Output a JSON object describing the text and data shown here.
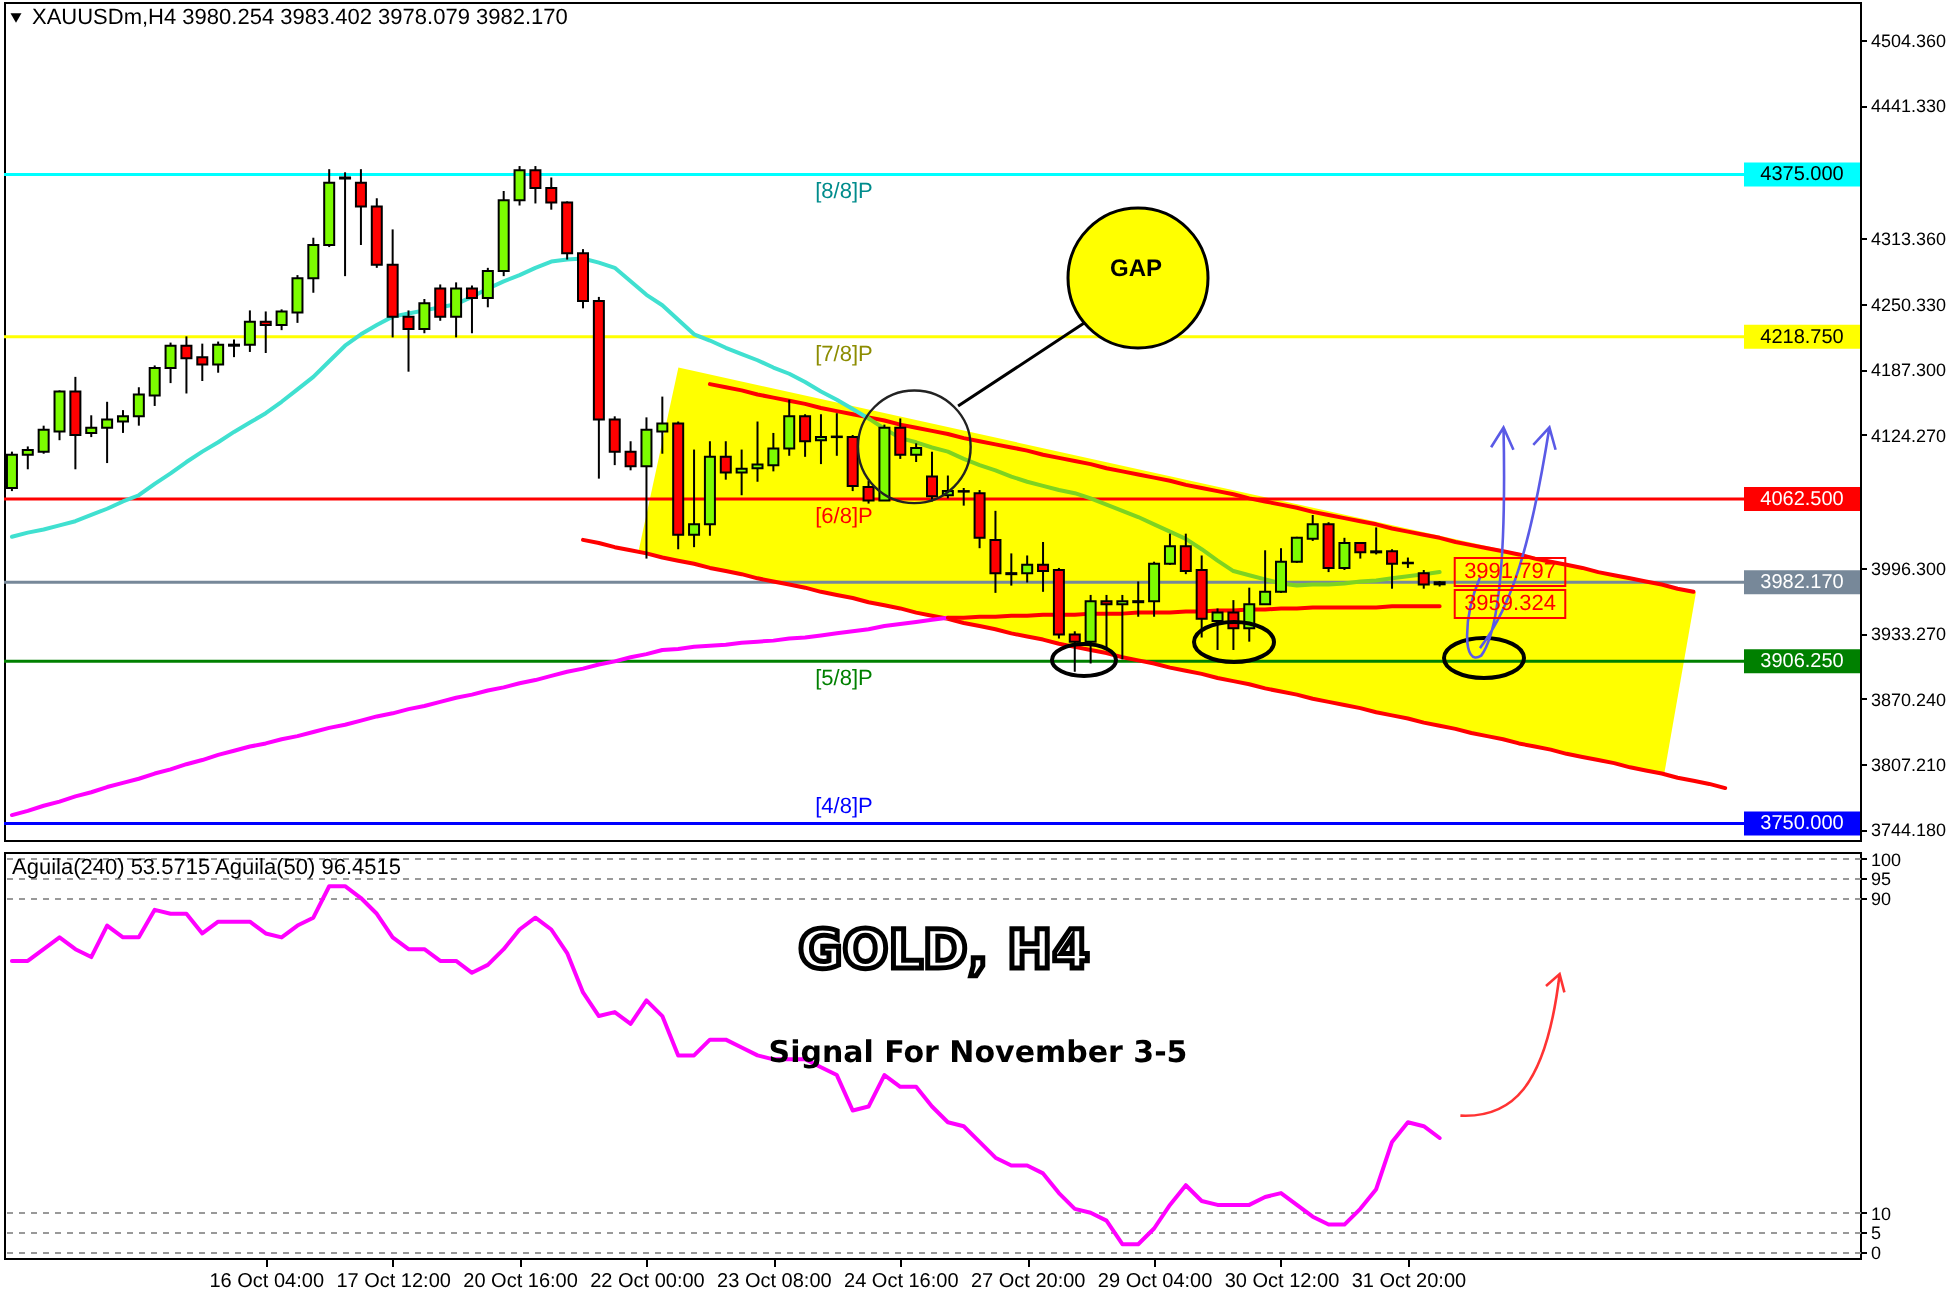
{
  "chart_data": [
    {
      "type": "candlestick",
      "title": "XAUUSDm,H4  3980.254 3983.402 3978.079 3982.170",
      "tick_labels": "y",
      "categories": [
        null,
        null,
        null,
        null,
        null,
        null,
        null,
        null,
        null,
        null,
        null,
        null,
        null,
        null,
        null,
        null,
        null,
        null,
        null,
        null,
        null,
        null,
        null,
        null,
        null,
        null,
        null,
        null,
        null,
        null,
        null,
        null,
        null,
        null,
        null,
        null,
        null,
        null,
        null,
        null,
        null,
        null,
        null,
        null,
        null,
        null,
        null,
        null,
        null,
        null,
        null,
        null,
        null,
        null,
        null,
        null,
        null,
        null,
        null,
        null,
        null,
        null,
        null,
        null,
        null,
        null,
        null,
        null,
        null,
        null,
        null,
        null,
        null,
        null,
        null,
        null,
        null,
        null,
        null,
        null,
        null,
        null,
        null,
        null,
        null,
        null,
        null,
        null,
        null,
        null,
        null,
        null,
        null,
        null,
        null,
        null,
        null,
        null,
        null,
        null,
        null,
        null,
        null,
        null,
        null,
        null,
        null,
        null,
        null,
        null,
        null,
        null,
        null,
        null,
        null,
        null,
        null
      ],
      "ohlc": [
        [
          4073,
          4108,
          4070,
          4105
        ],
        [
          4105,
          4113,
          4091,
          4109.5
        ],
        [
          4108,
          4133,
          4106,
          4129
        ],
        [
          4127.5,
          4167,
          4119,
          4166
        ],
        [
          4166,
          4180,
          4091,
          4124
        ],
        [
          4126,
          4143,
          4122,
          4131
        ],
        [
          4131,
          4156,
          4097,
          4139
        ],
        [
          4137,
          4148,
          4126,
          4142
        ],
        [
          4142,
          4170,
          4133,
          4163
        ],
        [
          4162,
          4191,
          4152,
          4188.5
        ],
        [
          4188.5,
          4213,
          4174,
          4210
        ],
        [
          4210,
          4219,
          4164,
          4198
        ],
        [
          4199,
          4212,
          4176,
          4192
        ],
        [
          4192,
          4214,
          4184,
          4211
        ],
        [
          4210,
          4216,
          4199,
          4211
        ],
        [
          4211,
          4244,
          4204,
          4233
        ],
        [
          4233,
          4243,
          4203,
          4230
        ],
        [
          4230,
          4245,
          4225,
          4243
        ],
        [
          4242,
          4278,
          4232,
          4275
        ],
        [
          4275,
          4314,
          4261,
          4307
        ],
        [
          4307,
          4380,
          4305,
          4367
        ],
        [
          4371,
          4377,
          4277,
          4372
        ],
        [
          4367,
          4380,
          4307,
          4344
        ],
        [
          4344,
          4352,
          4285,
          4288
        ],
        [
          4288,
          4322,
          4218,
          4238
        ],
        [
          4238,
          4244,
          4185,
          4226
        ],
        [
          4226,
          4255,
          4222,
          4251
        ],
        [
          4265,
          4269,
          4234,
          4238
        ],
        [
          4238,
          4271,
          4218,
          4265
        ],
        [
          4265,
          4268,
          4222,
          4256
        ],
        [
          4256,
          4285,
          4247,
          4282
        ],
        [
          4282,
          4359,
          4277,
          4350
        ],
        [
          4350,
          4383,
          4345,
          4379
        ],
        [
          4379,
          4383,
          4347,
          4362
        ],
        [
          4362,
          4372,
          4341,
          4348
        ],
        [
          4348,
          4349,
          4293,
          4299
        ],
        [
          4299,
          4303,
          4246,
          4253
        ],
        [
          4253,
          4257,
          4082,
          4139
        ],
        [
          4139,
          4142,
          4095,
          4108
        ],
        [
          4108,
          4118,
          4090,
          4094
        ],
        [
          4094,
          4141,
          4005,
          4129
        ],
        [
          4127.5,
          4161,
          4106,
          4135
        ],
        [
          4135,
          4137,
          4014,
          4028
        ],
        [
          4028,
          4110,
          4016,
          4038
        ],
        [
          4038,
          4118,
          4027,
          4103
        ],
        [
          4103,
          4118,
          4081,
          4088
        ],
        [
          4088,
          4110,
          4066,
          4091.5
        ],
        [
          4092,
          4137,
          4079,
          4095.5
        ],
        [
          4095,
          4126,
          4089,
          4111
        ],
        [
          4111,
          4158,
          4104,
          4142
        ],
        [
          4142,
          4144,
          4103,
          4118
        ],
        [
          4119,
          4144,
          4096,
          4122
        ],
        [
          4122,
          4145,
          4104,
          4122.5
        ],
        [
          4122,
          4124,
          4070,
          4075
        ],
        [
          4074,
          4080,
          4058,
          4061
        ],
        [
          4061,
          4134,
          4061,
          4131
        ],
        [
          4131,
          4140,
          4101,
          4105
        ],
        [
          4105,
          4116,
          4098,
          4111.5
        ],
        [
          4084,
          4108,
          4060,
          4065
        ],
        [
          4066,
          4085,
          4063,
          4070
        ],
        [
          4070,
          4073,
          4056,
          4069.5
        ],
        [
          4068,
          4071,
          4015,
          4025
        ],
        [
          4023,
          4051,
          3972,
          3991
        ],
        [
          3991,
          4010,
          3979,
          3990
        ],
        [
          3991,
          4008,
          3982,
          3999
        ],
        [
          3999,
          4021,
          3973,
          3993
        ],
        [
          3994,
          3996,
          3928,
          3932
        ],
        [
          3932,
          3935,
          3896,
          3925
        ],
        [
          3925,
          3970,
          3904,
          3964
        ],
        [
          3964,
          3970,
          3917,
          3961
        ],
        [
          3961,
          3970,
          3908,
          3964
        ],
        [
          3963,
          3983,
          3949,
          3964
        ],
        [
          3964,
          4002,
          3949,
          4000
        ],
        [
          4000,
          4029,
          3999,
          4017
        ],
        [
          4017,
          4029,
          3990,
          3993
        ],
        [
          3994,
          4008,
          3929,
          3947
        ],
        [
          3945,
          3957,
          3917,
          3953
        ],
        [
          3953,
          3965,
          3917,
          3938
        ],
        [
          3938,
          3977,
          3925,
          3961
        ],
        [
          3961,
          4013,
          3961,
          3973
        ],
        [
          3973,
          4015,
          3972,
          4002
        ],
        [
          4002,
          4026,
          4001,
          4025
        ],
        [
          4024,
          4047,
          4022,
          4038
        ],
        [
          4038,
          4040,
          3992,
          3996
        ],
        [
          3996,
          4025,
          3994,
          4020
        ],
        [
          4020,
          4021,
          4005,
          4011
        ],
        [
          4012,
          4035,
          4009,
          4011
        ],
        [
          4012,
          4014,
          3976,
          4000
        ],
        [
          4001,
          4006,
          3996,
          4000.5
        ],
        [
          3991,
          3994,
          3976,
          3980
        ],
        [
          3980.254,
          3983.402,
          3978.079,
          3982.17
        ],
        null,
        null,
        null,
        null,
        null,
        null,
        null,
        null,
        null,
        null,
        null,
        null,
        null,
        null,
        null,
        null,
        null,
        null,
        null,
        null,
        null,
        null,
        null,
        null,
        null,
        null
      ],
      "colors": [
        "#7cfc00",
        "#7cfc00",
        "#7cfc00",
        "#7cfc00",
        "#ff0000",
        "#7cfc00",
        "#7cfc00",
        "#7cfc00",
        "#7cfc00",
        "#7cfc00",
        "#7cfc00",
        "#ff0000",
        "#ff0000",
        "#7cfc00",
        "#7cfc00",
        "#7cfc00",
        "#ff0000",
        "#7cfc00",
        "#7cfc00",
        "#7cfc00",
        "#7cfc00",
        "#7cfc00",
        "#ff0000",
        "#ff0000",
        "#ff0000",
        "#ff0000",
        "#7cfc00",
        "#ff0000",
        "#7cfc00",
        "#ff0000",
        "#7cfc00",
        "#7cfc00",
        "#7cfc00",
        "#ff0000",
        "#ff0000",
        "#ff0000",
        "#ff0000",
        "#ff0000",
        "#ff0000",
        "#ff0000",
        "#7cfc00",
        "#7cfc00",
        "#ff0000",
        "#7cfc00",
        "#7cfc00",
        "#ff0000",
        "#7cfc00",
        "#7cfc00",
        "#7cfc00",
        "#7cfc00",
        "#ff0000",
        "#7cfc00",
        "#7cfc00",
        "#ff0000",
        "#ff0000",
        "#7cfc00",
        "#ff0000",
        "#7cfc00",
        "#ff0000",
        "#7cfc00",
        "#ff0000",
        "#ff0000",
        "#ff0000",
        "#ff0000",
        "#7cfc00",
        "#ff0000",
        "#ff0000",
        "#ff0000",
        "#7cfc00",
        "#ff0000",
        "#7cfc00",
        "#7cfc00",
        "#7cfc00",
        "#7cfc00",
        "#ff0000",
        "#ff0000",
        "#7cfc00",
        "#ff0000",
        "#7cfc00",
        "#7cfc00",
        "#7cfc00",
        "#7cfc00",
        "#7cfc00",
        "#ff0000",
        "#7cfc00",
        "#ff0000",
        "#ff0000",
        "#ff0000",
        "#ff0000",
        "#ff0000",
        "#7cfc00",
        null,
        null,
        null,
        null,
        null,
        null,
        null,
        null,
        null,
        null,
        null,
        null,
        null,
        null,
        null,
        null,
        null,
        null,
        null,
        null,
        null,
        null,
        null,
        null,
        null,
        null
      ],
      "series": [
        {
          "type": "line",
          "color": "#ff0000",
          "values": [
            null,
            null,
            null,
            null,
            null,
            null,
            null,
            null,
            null,
            null,
            null,
            null,
            null,
            null,
            null,
            null,
            null,
            null,
            null,
            null,
            null,
            null,
            null,
            null,
            null,
            null,
            null,
            null,
            null,
            null,
            null,
            null,
            null,
            null,
            null,
            null,
            null,
            null,
            null,
            null,
            null,
            null,
            null,
            null,
            4173,
            4170,
            4167,
            4163,
            4160,
            4157,
            4154,
            4150,
            4147,
            4144,
            4141,
            4138,
            4134,
            4131,
            4128,
            4125,
            4121,
            4118,
            4115,
            4112,
            4109,
            4105,
            4102,
            4099,
            4096,
            4092,
            4089,
            4086,
            4083,
            4080,
            4076,
            4073,
            4070,
            4067,
            4063,
            4060,
            4057,
            4054,
            4050,
            4047,
            4044,
            4041,
            4038,
            4034,
            4031,
            4028,
            4025,
            4021,
            4018,
            4015,
            4012,
            4009,
            4005,
            4002,
            3999,
            3996,
            3992,
            3989,
            3986,
            3983,
            3980,
            3976,
            3973,
            null,
            null,
            null,
            null,
            null,
            null,
            null,
            null,
            null,
            null
          ]
        },
        {
          "type": "line",
          "color": "#ff0000",
          "values": [
            null,
            null,
            null,
            null,
            null,
            null,
            null,
            null,
            null,
            null,
            null,
            null,
            null,
            null,
            null,
            null,
            null,
            null,
            null,
            null,
            null,
            null,
            null,
            null,
            null,
            null,
            null,
            null,
            null,
            null,
            null,
            null,
            null,
            null,
            null,
            null,
            4023,
            4020,
            4016,
            4013,
            4010,
            4006,
            4003,
            4000,
            3996,
            3993,
            3990,
            3986,
            3983,
            3980,
            3977,
            3973,
            3970,
            3967,
            3963,
            3960,
            3957,
            3953,
            3950,
            3947,
            3943,
            3940,
            3937,
            3933,
            3930,
            3927,
            3923,
            3920,
            3917,
            3914,
            3910,
            3907,
            3904,
            3900,
            3897,
            3894,
            3890,
            3887,
            3884,
            3880,
            3877,
            3874,
            3870,
            3867,
            3864,
            3861,
            3857,
            3854,
            3851,
            3847,
            3844,
            3841,
            3837,
            3834,
            3831,
            3827,
            3824,
            3821,
            3817,
            3814,
            3811,
            3808,
            3804,
            3801,
            3798,
            3794,
            3791,
            3788,
            3784,
            null,
            null,
            null,
            null,
            null,
            null,
            null,
            null
          ]
        },
        {
          "type": "line",
          "color": "#ff00ff",
          "values": [
            3758,
            3762,
            3767,
            3771,
            3776,
            3780,
            3785,
            3789,
            3793,
            3798,
            3802,
            3807,
            3811,
            3816,
            3820,
            3824,
            3827,
            3831,
            3834,
            3838,
            3842,
            3845,
            3849,
            3853,
            3856,
            3860,
            3863,
            3867,
            3871,
            3874,
            3878,
            3881,
            3885,
            3888,
            3892,
            3896,
            3899,
            3903,
            3906,
            3910,
            3913,
            3917,
            3918,
            3920,
            3921,
            3922,
            3924,
            3925,
            3926,
            3928,
            3929,
            3931,
            3933,
            3935,
            3937,
            3940,
            3942,
            3944,
            3946,
            3948,
            null,
            null,
            null,
            null,
            null,
            null,
            null,
            null,
            null,
            null,
            null,
            null,
            null,
            null,
            null,
            null,
            null,
            null,
            null,
            null,
            null,
            null,
            null,
            null,
            null,
            null,
            null,
            null,
            null,
            null,
            null,
            null,
            null,
            null,
            null,
            null,
            null,
            null,
            null,
            null,
            null,
            null,
            null,
            null,
            null,
            null,
            null,
            null,
            null,
            null,
            null,
            null,
            null,
            null,
            null,
            null,
            null
          ]
        },
        {
          "type": "line",
          "color": "#ff0000",
          "values": [
            null,
            null,
            null,
            null,
            null,
            null,
            null,
            null,
            null,
            null,
            null,
            null,
            null,
            null,
            null,
            null,
            null,
            null,
            null,
            null,
            null,
            null,
            null,
            null,
            null,
            null,
            null,
            null,
            null,
            null,
            null,
            null,
            null,
            null,
            null,
            null,
            null,
            null,
            null,
            null,
            null,
            null,
            null,
            null,
            null,
            null,
            null,
            null,
            null,
            null,
            null,
            null,
            null,
            null,
            null,
            null,
            null,
            null,
            null,
            3948,
            3948,
            3949,
            3949,
            3950,
            3950,
            3951,
            3951,
            3951,
            3952,
            3952,
            3952,
            3953,
            3953,
            3953,
            3954,
            3954,
            3955,
            3955,
            3956,
            3956,
            3957,
            3957,
            3958,
            3958,
            3958,
            3958,
            3958,
            3959,
            3959,
            3959,
            3959,
            null,
            null,
            null,
            null,
            null,
            null,
            null,
            null,
            null,
            null,
            null,
            null,
            null,
            null,
            null,
            null,
            null,
            null,
            null,
            null,
            null,
            null,
            null,
            null,
            null,
            null
          ]
        },
        {
          "type": "line",
          "color": "#40e0d0",
          "values": [
            4026,
            4030,
            4033,
            4037,
            4041,
            4047,
            4053,
            4060,
            4066,
            4077,
            4087,
            4098,
            4108,
            4117,
            4127,
            4136,
            4145,
            4156,
            4168,
            4180,
            4195,
            4210,
            4221,
            4230,
            4238,
            4241,
            4244,
            4247,
            4250,
            4257,
            4265,
            4272,
            4278,
            4285,
            4291,
            4293,
            4294,
            4290,
            4285,
            4272,
            4259,
            4249,
            4235,
            4221,
            4215,
            4208,
            4202,
            4196,
            4189,
            4183,
            4175,
            4166,
            4158,
            4149,
            4140,
            null,
            null,
            null,
            null,
            null,
            null,
            null,
            null,
            null,
            null,
            null,
            null,
            null,
            null,
            null,
            null,
            null,
            null,
            null,
            null,
            null,
            null,
            null,
            null,
            null,
            null,
            null,
            null,
            null,
            null,
            null,
            null,
            null,
            null,
            null,
            null,
            null,
            null,
            null,
            null,
            null,
            null,
            null,
            null,
            null,
            null,
            null,
            null,
            null,
            null,
            null,
            null,
            null,
            null,
            null,
            null,
            null,
            null,
            null,
            null,
            null,
            null
          ]
        },
        {
          "type": "line",
          "color": "#7ed321",
          "values": [
            null,
            null,
            null,
            null,
            null,
            null,
            null,
            null,
            null,
            null,
            null,
            null,
            null,
            null,
            null,
            null,
            null,
            null,
            null,
            null,
            null,
            null,
            null,
            null,
            null,
            null,
            null,
            null,
            null,
            null,
            null,
            null,
            null,
            null,
            null,
            null,
            null,
            null,
            null,
            null,
            null,
            null,
            null,
            null,
            null,
            null,
            null,
            null,
            null,
            null,
            null,
            null,
            null,
            null,
            4140,
            4130,
            4121,
            4117,
            4112,
            4108,
            4101,
            4095,
            4090,
            4084,
            4079,
            4075,
            4071,
            4068,
            4063,
            4057,
            4051,
            4045,
            4038,
            4031,
            4024,
            4014,
            4003,
            3993,
            3989,
            3985,
            3981,
            3979,
            3980,
            3980,
            3981,
            3983,
            3984,
            3986,
            3988,
            3990,
            3992,
            null,
            null,
            null,
            null,
            null,
            null,
            null,
            null,
            null,
            null,
            null,
            null,
            null,
            null,
            null,
            null,
            null,
            null,
            null,
            null,
            null,
            null,
            null,
            null,
            null,
            null
          ]
        }
      ],
      "ylim": [
        3734,
        4541
      ],
      "yticks": [
        {
          "value": 3744.18,
          "label": "3744.180"
        },
        {
          "value": 3807.21,
          "label": "3807.210"
        },
        {
          "value": 3870.24,
          "label": "3870.240"
        },
        {
          "value": 3933.27,
          "label": "3933.270"
        },
        {
          "value": 3996.3,
          "label": "3996.300"
        },
        {
          "value": 4124.27,
          "label": "4124.270"
        },
        {
          "value": 4187.3,
          "label": "4187.300"
        },
        {
          "value": 4250.33,
          "label": "4250.330"
        },
        {
          "value": 4313.36,
          "label": "4313.360"
        },
        {
          "value": 4441.33,
          "label": "4441.330"
        },
        {
          "value": 4504.36,
          "label": "4504.360"
        }
      ],
      "ref_lines": [
        {
          "axis": "y",
          "value": 4375,
          "label": "4375.000",
          "color": "#00ffff"
        },
        {
          "axis": "y",
          "value": 4218.75,
          "label": "4218.750",
          "color": "#ffff00"
        },
        {
          "axis": "y",
          "value": 4062.5,
          "label": "4062.500",
          "color": "#ff0000"
        },
        {
          "axis": "y",
          "value": 3982.17,
          "label": "3982.170",
          "color": "#778899"
        },
        {
          "axis": "y",
          "value": 3906.25,
          "label": "3906.250",
          "color": "#008000"
        },
        {
          "axis": "y",
          "value": 3750,
          "label": "3750.000",
          "color": "#0000ff"
        }
      ],
      "annotations": [
        {
          "text": "[8/8]P",
          "y": 4375
        },
        {
          "text": "[7/8]P",
          "y": 4218.75
        },
        {
          "text": "[6/8]P",
          "y": 4062.5
        },
        {
          "text": "[5/8]P",
          "y": 3906.25
        },
        {
          "text": "[4/8]P",
          "y": 3750
        },
        "3991.797",
        "3959.324",
        "GAP"
      ]
    },
    {
      "type": "line",
      "title": "Aguila(240) 53.5715  Aguila(50) 96.4515",
      "categories": [
        null,
        null,
        null,
        null,
        null,
        null,
        null,
        null,
        null,
        null,
        null,
        null,
        null,
        null,
        null,
        null,
        "16 Oct 04:00",
        null,
        null,
        null,
        null,
        null,
        null,
        null,
        "17 Oct 12:00",
        null,
        null,
        null,
        null,
        null,
        null,
        null,
        "20 Oct 16:00",
        null,
        null,
        null,
        null,
        null,
        null,
        null,
        "22 Oct 00:00",
        null,
        null,
        null,
        null,
        null,
        null,
        null,
        "23 Oct 08:00",
        null,
        null,
        null,
        null,
        null,
        null,
        null,
        "24 Oct 16:00",
        null,
        null,
        null,
        null,
        null,
        null,
        null,
        "27 Oct 20:00",
        null,
        null,
        null,
        null,
        null,
        null,
        null,
        "29 Oct 04:00",
        null,
        null,
        null,
        null,
        null,
        null,
        null,
        "30 Oct 12:00",
        null,
        null,
        null,
        null,
        null,
        null,
        null,
        "31 Oct 20:00",
        null,
        null,
        null,
        null,
        null,
        null,
        null,
        null,
        null,
        null,
        null,
        null,
        null,
        null,
        null,
        null,
        null,
        null,
        null,
        null,
        null,
        null,
        null,
        null,
        null,
        null,
        null,
        null
      ],
      "series": [
        {
          "color": "#ff00ff",
          "values": [
            74,
            74,
            77,
            80,
            77,
            75,
            83,
            80,
            80,
            87,
            86,
            86,
            81,
            84,
            84,
            84,
            81,
            80,
            83,
            85,
            93,
            93,
            90,
            86,
            80,
            77,
            77,
            74,
            74,
            71,
            73,
            77,
            82,
            85,
            82,
            76,
            66,
            60,
            61,
            58,
            64,
            60,
            50,
            50,
            54,
            54,
            52,
            50,
            49,
            49,
            49,
            47,
            45,
            36,
            37,
            45,
            42,
            42,
            37,
            33,
            32,
            28,
            24,
            22,
            22,
            20,
            15,
            11,
            10,
            8,
            2,
            2,
            6,
            12,
            17,
            13,
            12,
            12,
            12,
            14,
            15,
            12,
            9,
            7,
            7,
            11,
            16,
            28,
            33,
            32,
            29,
            null,
            null,
            null,
            null,
            null,
            null,
            null,
            null,
            null,
            null,
            null,
            null,
            null,
            null,
            null,
            null,
            null,
            null,
            null,
            null,
            null,
            null,
            null,
            null,
            null,
            null
          ]
        }
      ],
      "ylim": [
        -1.5,
        101.7
      ],
      "yticks": [
        0,
        5,
        10,
        90,
        95,
        100
      ],
      "grid": "y",
      "annotations": [
        "GOLD, H4",
        "Signal For November  3-5"
      ]
    }
  ]
}
